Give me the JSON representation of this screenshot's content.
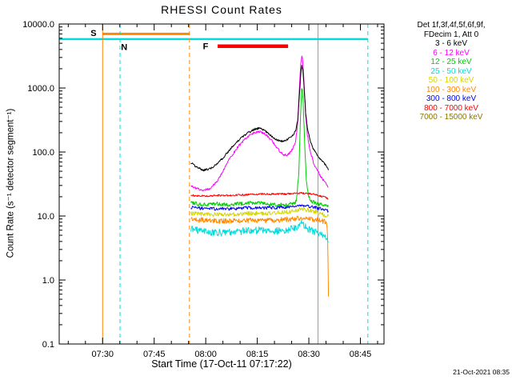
{
  "chart_data": {
    "type": "line",
    "title": "RHESSI Count Rates",
    "xlabel": "Start Time (17-Oct-11 07:17:22)",
    "ylabel": "Count Rate (s⁻¹ detector segment⁻¹)",
    "timestamp": "21-Oct-2021 08:35",
    "y_scale": "log",
    "y_range": [
      0.1,
      10000
    ],
    "x_unit": "minutes since 07:17:22 UT",
    "x_range": [
      0,
      94.5
    ],
    "x_ticks": [
      {
        "t": 12.633,
        "label": "07:30"
      },
      {
        "t": 27.633,
        "label": "07:45"
      },
      {
        "t": 42.633,
        "label": "08:00"
      },
      {
        "t": 57.633,
        "label": "08:15"
      },
      {
        "t": 72.633,
        "label": "08:30"
      },
      {
        "t": 87.633,
        "label": "08:45"
      }
    ],
    "x_minor_start": 2.633,
    "x_minor_step": 5,
    "y_ticks": [
      {
        "v": 0.1,
        "label": "0.1"
      },
      {
        "v": 1,
        "label": "1.0"
      },
      {
        "v": 10,
        "label": "10.0"
      },
      {
        "v": 100,
        "label": "100.0"
      },
      {
        "v": 1000,
        "label": "1000.0"
      },
      {
        "v": 10000,
        "label": "10000.0"
      }
    ],
    "legend_header": [
      "Det 1f,3f,4f,5f,6f,9f,",
      "FDecim 1, Att 0"
    ],
    "flags": [
      {
        "label": "S",
        "color": "#ff8800",
        "t1": 12.63,
        "t2": 37.9,
        "value": 7000,
        "width": 3,
        "label_t": 10.0,
        "label_v": 7300
      },
      {
        "label": "N",
        "color": "#00dddd",
        "t1": 0,
        "t2": 89.8,
        "value": 5800,
        "width": 2.5,
        "label_t": 18.9,
        "label_v": 4400
      },
      {
        "label": "F",
        "color": "#ff0000",
        "t1": 46.1,
        "t2": 66.6,
        "value": 4500,
        "width": 4.5,
        "label_t": 42.6,
        "label_v": 4500
      }
    ],
    "vlines": [
      {
        "t": 12.63,
        "color": "#ff8800",
        "dash": ""
      },
      {
        "t": 17.7,
        "color": "#00dddd",
        "dash": "5,4"
      },
      {
        "t": 37.9,
        "color": "#ff8800",
        "dash": "5,4"
      },
      {
        "t": 75.3,
        "color": "#00dddd",
        "dash": ""
      },
      {
        "t": 89.8,
        "color": "#00dddd",
        "dash": "5,4"
      }
    ],
    "series": [
      {
        "name": "3 - 6 keV",
        "color": "#000000",
        "noise": 0.016,
        "seed": 1,
        "points": [
          [
            38.3,
            68
          ],
          [
            40,
            58
          ],
          [
            42,
            52
          ],
          [
            44,
            55
          ],
          [
            46,
            65
          ],
          [
            48,
            85
          ],
          [
            50,
            115
          ],
          [
            52,
            150
          ],
          [
            54,
            185
          ],
          [
            56,
            215
          ],
          [
            57,
            228
          ],
          [
            58,
            235
          ],
          [
            59,
            228
          ],
          [
            60,
            212
          ],
          [
            61,
            192
          ],
          [
            62,
            172
          ],
          [
            63,
            158
          ],
          [
            64,
            150
          ],
          [
            65,
            148
          ],
          [
            66,
            153
          ],
          [
            67,
            166
          ],
          [
            68,
            182
          ],
          [
            68.8,
            215
          ],
          [
            69.4,
            310
          ],
          [
            69.9,
            800
          ],
          [
            70.3,
            1700
          ],
          [
            70.6,
            2200
          ],
          [
            70.9,
            1900
          ],
          [
            71.3,
            900
          ],
          [
            71.7,
            420
          ],
          [
            72.2,
            235
          ],
          [
            73,
            150
          ],
          [
            74,
            110
          ],
          [
            75,
            90
          ],
          [
            76,
            78
          ],
          [
            77,
            68
          ],
          [
            78,
            58
          ],
          [
            78.3,
            52
          ]
        ]
      },
      {
        "name": "6 - 12 keV",
        "color": "#ff00ff",
        "noise": 0.02,
        "seed": 2,
        "points": [
          [
            38.3,
            30
          ],
          [
            40,
            27
          ],
          [
            42,
            25
          ],
          [
            44,
            27
          ],
          [
            46,
            35
          ],
          [
            48,
            55
          ],
          [
            50,
            85
          ],
          [
            52,
            120
          ],
          [
            54,
            160
          ],
          [
            56,
            190
          ],
          [
            57,
            203
          ],
          [
            58,
            210
          ],
          [
            59,
            204
          ],
          [
            60,
            188
          ],
          [
            61,
            168
          ],
          [
            62,
            146
          ],
          [
            63,
            124
          ],
          [
            64,
            105
          ],
          [
            65,
            93
          ],
          [
            66,
            88
          ],
          [
            67,
            96
          ],
          [
            68,
            112
          ],
          [
            68.8,
            145
          ],
          [
            69.4,
            300
          ],
          [
            69.9,
            1100
          ],
          [
            70.3,
            2500
          ],
          [
            70.6,
            3100
          ],
          [
            70.9,
            2500
          ],
          [
            71.3,
            1050
          ],
          [
            71.7,
            400
          ],
          [
            72.2,
            190
          ],
          [
            73,
            105
          ],
          [
            74,
            68
          ],
          [
            75,
            52
          ],
          [
            76,
            42
          ],
          [
            77,
            36
          ],
          [
            78,
            30
          ],
          [
            78.3,
            28
          ]
        ]
      },
      {
        "name": "12 - 25 keV",
        "color": "#00cc00",
        "noise": 0.03,
        "seed": 3,
        "points": [
          [
            38.3,
            16
          ],
          [
            42,
            15
          ],
          [
            46,
            15.5
          ],
          [
            50,
            15
          ],
          [
            54,
            16
          ],
          [
            58,
            16
          ],
          [
            62,
            15
          ],
          [
            66,
            15
          ],
          [
            68,
            15.5
          ],
          [
            69,
            17
          ],
          [
            69.7,
            45
          ],
          [
            70.2,
            350
          ],
          [
            70.55,
            950
          ],
          [
            70.75,
            1000
          ],
          [
            71,
            580
          ],
          [
            71.4,
            140
          ],
          [
            71.9,
            38
          ],
          [
            72.5,
            20
          ],
          [
            73.5,
            17
          ],
          [
            75,
            15.5
          ],
          [
            77,
            15
          ],
          [
            78.3,
            14
          ]
        ]
      },
      {
        "name": "25 - 50 keV",
        "color": "#00dddd",
        "noise": 0.055,
        "seed": 4,
        "points": [
          [
            38.3,
            6.2
          ],
          [
            42,
            5.8
          ],
          [
            46,
            5.5
          ],
          [
            50,
            5.6
          ],
          [
            54,
            5.8
          ],
          [
            58,
            6
          ],
          [
            62,
            5.8
          ],
          [
            66,
            6
          ],
          [
            69,
            6.5
          ],
          [
            70.5,
            8
          ],
          [
            71.5,
            7
          ],
          [
            73,
            6
          ],
          [
            75,
            5.5
          ],
          [
            76.5,
            5
          ],
          [
            77.5,
            4.5
          ],
          [
            78.3,
            3.9
          ]
        ]
      },
      {
        "name": "50 - 100 keV",
        "color": "#d6d600",
        "noise": 0.032,
        "seed": 5,
        "points": [
          [
            38.3,
            11
          ],
          [
            44,
            10.5
          ],
          [
            50,
            10.5
          ],
          [
            56,
            11
          ],
          [
            62,
            11
          ],
          [
            66,
            11.5
          ],
          [
            69,
            12
          ],
          [
            70.5,
            13
          ],
          [
            72,
            12.5
          ],
          [
            75,
            11.5
          ],
          [
            78.3,
            10
          ]
        ]
      },
      {
        "name": "100 - 300 keV",
        "color": "#ff8800",
        "noise": 0.04,
        "seed": 6,
        "points": [
          [
            38.3,
            8.8
          ],
          [
            44,
            8.5
          ],
          [
            50,
            8.3
          ],
          [
            56,
            8.5
          ],
          [
            62,
            8.5
          ],
          [
            66,
            8.8
          ],
          [
            70,
            9.2
          ],
          [
            73,
            9
          ],
          [
            76,
            8.5
          ],
          [
            77.8,
            8
          ],
          [
            78.1,
            5
          ],
          [
            78.35,
            0.55
          ]
        ]
      },
      {
        "name": "300 - 800 keV",
        "color": "#0000ee",
        "noise": 0.025,
        "seed": 7,
        "points": [
          [
            38.3,
            13.5
          ],
          [
            44,
            13
          ],
          [
            50,
            13
          ],
          [
            56,
            13.5
          ],
          [
            62,
            13.5
          ],
          [
            68,
            14
          ],
          [
            70,
            14.5
          ],
          [
            73,
            14
          ],
          [
            76,
            13
          ],
          [
            78.3,
            12
          ]
        ]
      },
      {
        "name": "800 - 7000 keV",
        "color": "#ff0000",
        "noise": 0.014,
        "seed": 8,
        "points": [
          [
            38.3,
            21
          ],
          [
            42,
            20.5
          ],
          [
            46,
            21
          ],
          [
            50,
            21
          ],
          [
            54,
            21.5
          ],
          [
            58,
            22
          ],
          [
            62,
            22
          ],
          [
            66,
            22
          ],
          [
            70,
            23
          ],
          [
            72,
            22.5
          ],
          [
            74,
            22
          ],
          [
            76,
            20.5
          ],
          [
            77.5,
            19.5
          ],
          [
            78.3,
            18.5
          ]
        ]
      },
      {
        "name": "7000 - 15000 keV",
        "color": "#887700",
        "noise": 0,
        "seed": 9,
        "visible": false,
        "points": []
      }
    ]
  }
}
